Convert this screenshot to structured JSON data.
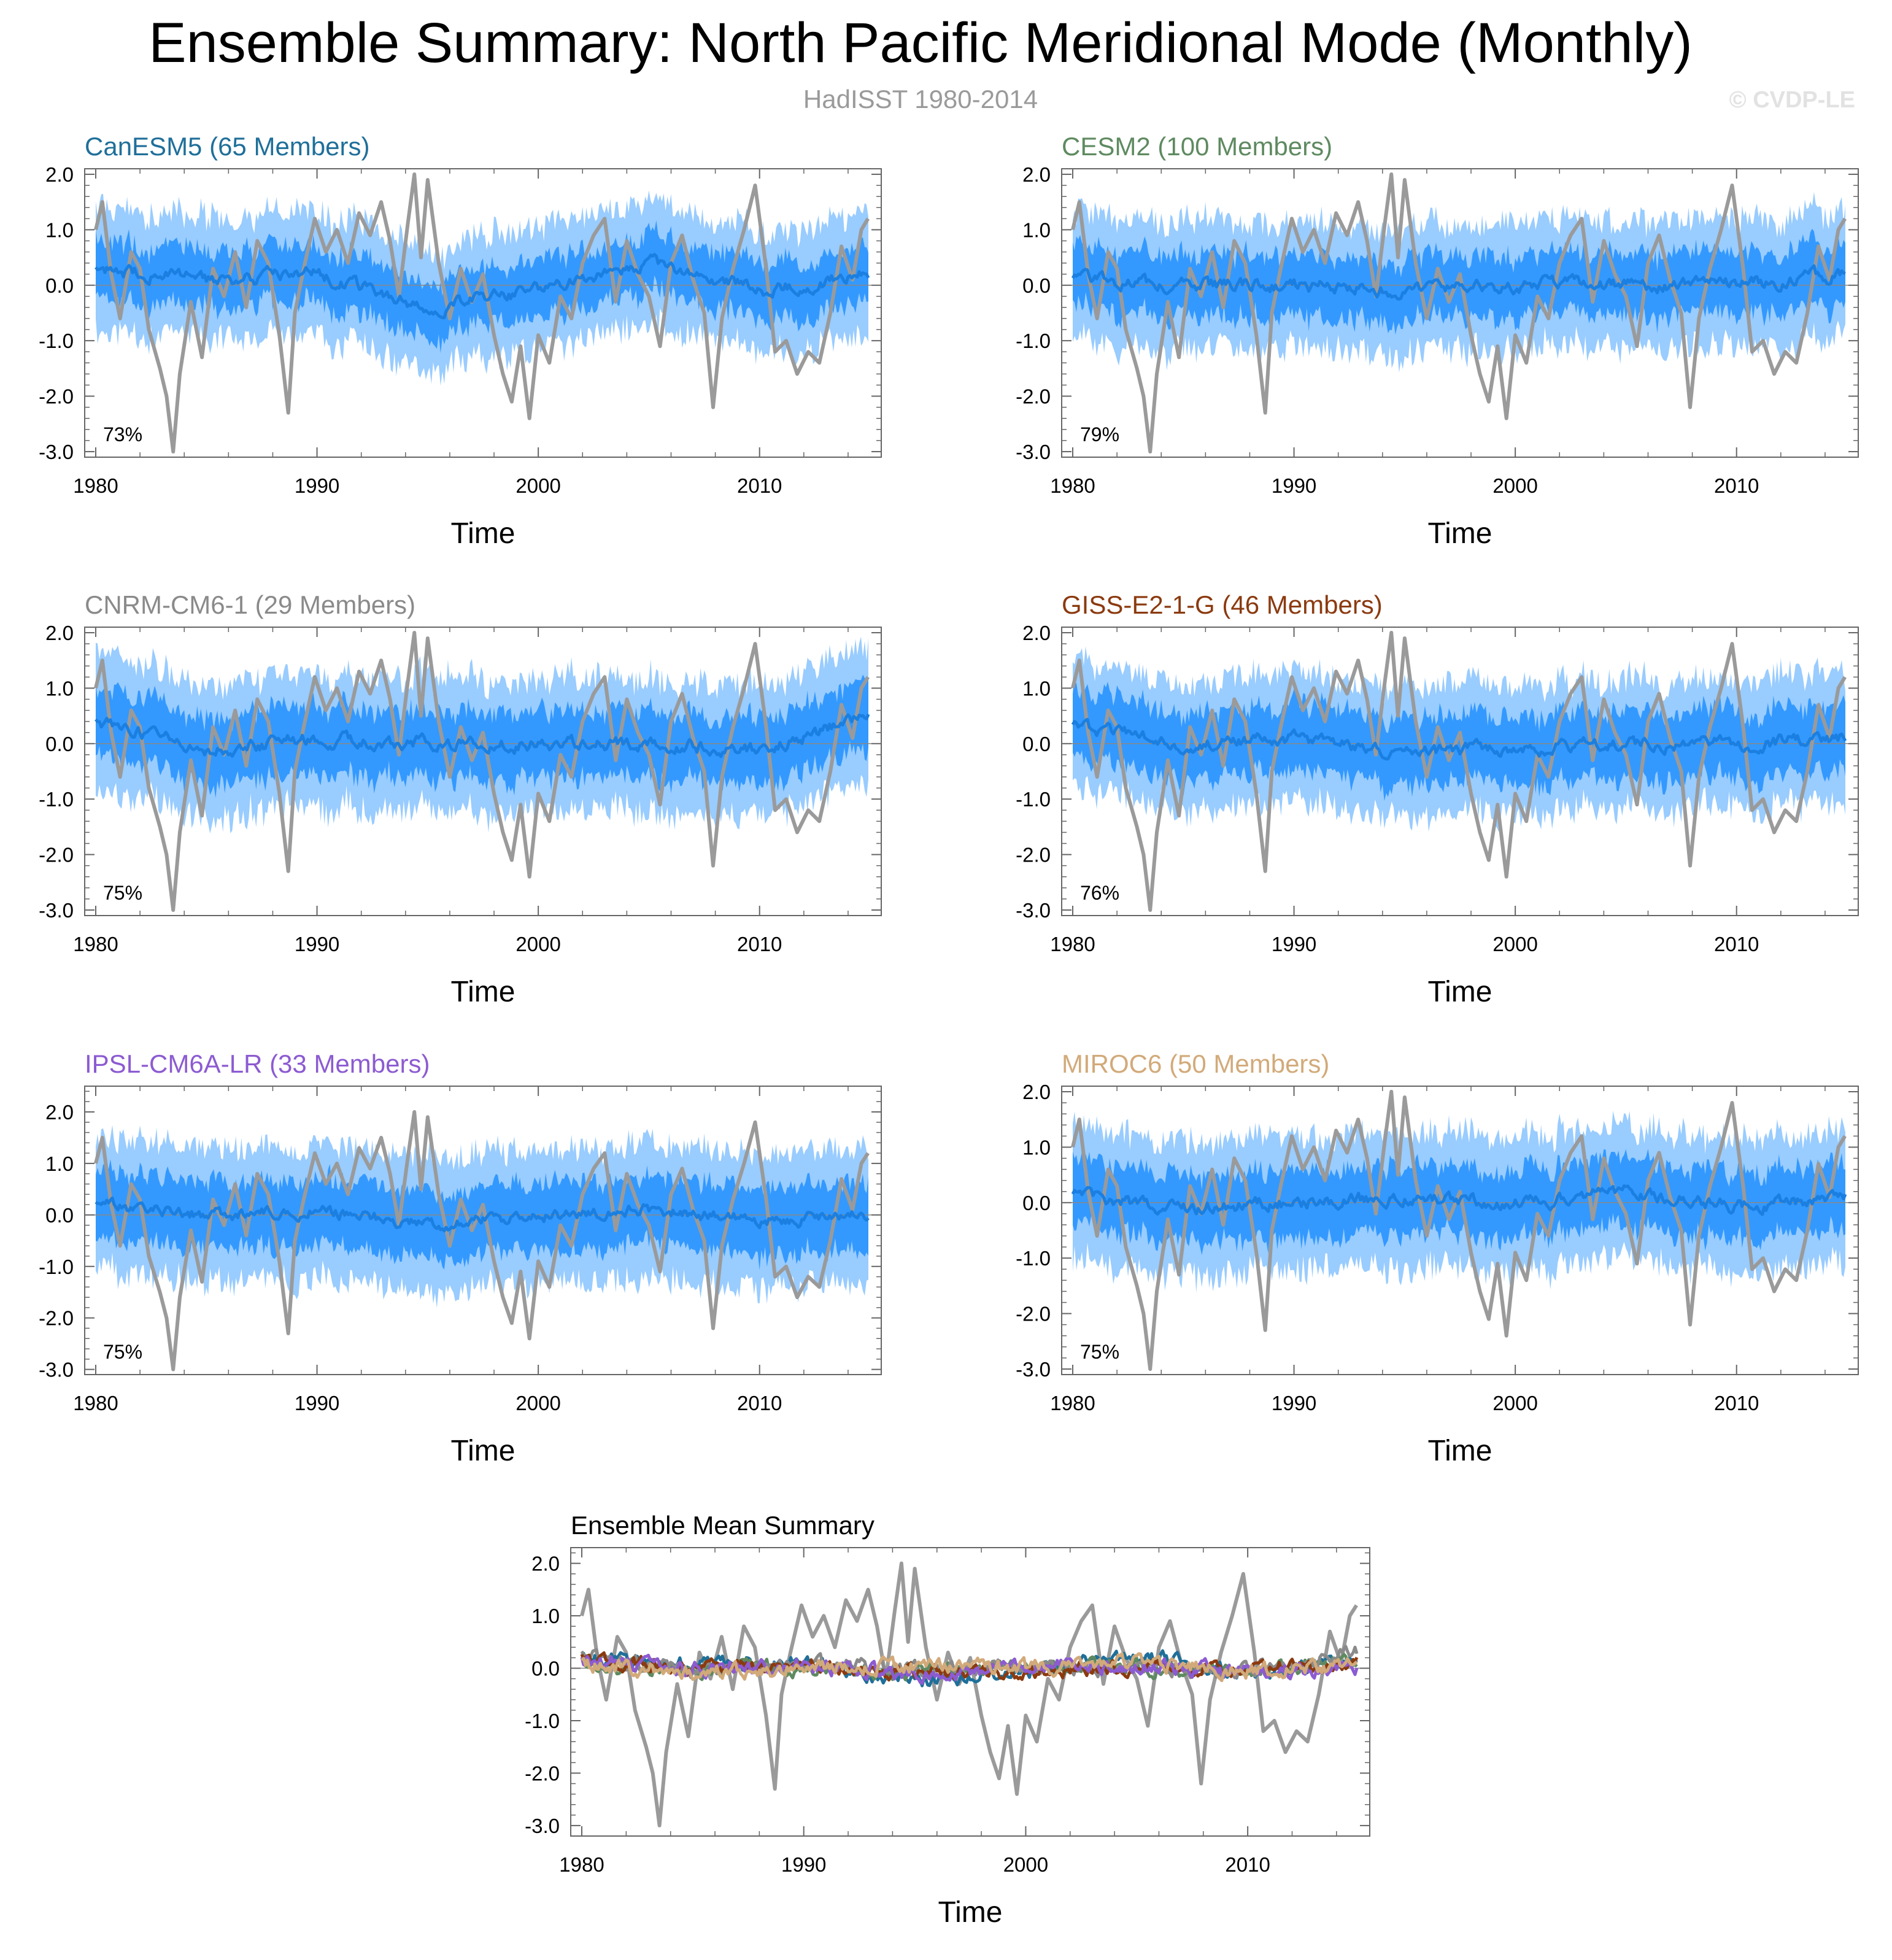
{
  "title": "Ensemble Summary: North Pacific Meridional Mode (Monthly)",
  "subtitle": "HadISST 1980-2014",
  "watermark": "© CVDP-LE",
  "colors": {
    "observed": "#9a9a9a",
    "outer_band": "#99ccff",
    "inner_band": "#3399ff",
    "ensemble_mean": "#1a7fe0",
    "axis": "#666666"
  },
  "chart_data": [
    {
      "type": "line",
      "id": "canesm5",
      "title": "CanESM5 (65 Members)",
      "title_color": "#1f6f99",
      "pct_label": "73%",
      "xlabel": "Time",
      "x_ticks": [
        "1980",
        "1990",
        "2000",
        "2010"
      ],
      "y_ticks": [
        "2.0",
        "1.0",
        "0.0",
        "-1.0",
        "-2.0",
        "-3.0"
      ],
      "xlim": [
        1980,
        2015
      ],
      "ylim": [
        -3.1,
        2.1
      ],
      "series": [
        {
          "name": "ensemble mean",
          "x": [
            1980,
            1985,
            1990,
            1995,
            2000,
            2005,
            2010,
            2014.9
          ],
          "values": [
            0.3,
            0.1,
            0.2,
            -0.4,
            -0.1,
            0.4,
            -0.1,
            0.2
          ]
        },
        {
          "name": "inner band (25-75%)",
          "half_width": 0.5
        },
        {
          "name": "outer band (2.5-97.5%)",
          "half_width": 1.1
        }
      ]
    },
    {
      "type": "line",
      "id": "cesm2",
      "title": "CESM2 (100 Members)",
      "title_color": "#5e8a60",
      "pct_label": "79%",
      "xlabel": "Time",
      "x_ticks": [
        "1980",
        "1990",
        "2000",
        "2010"
      ],
      "y_ticks": [
        "2.0",
        "1.0",
        "0.0",
        "-1.0",
        "-2.0",
        "-3.0"
      ],
      "xlim": [
        1980,
        2015
      ],
      "ylim": [
        -3.1,
        2.1
      ],
      "series": [
        {
          "name": "ensemble mean",
          "x": [
            1980,
            1985,
            1990,
            1995,
            2000,
            2005,
            2010,
            2014.9
          ],
          "values": [
            0.1,
            0.0,
            0.0,
            -0.1,
            0.0,
            0.0,
            0.0,
            0.2
          ]
        },
        {
          "name": "inner band (25-75%)",
          "half_width": 0.55
        },
        {
          "name": "outer band (2.5-97.5%)",
          "half_width": 1.15
        }
      ]
    },
    {
      "type": "line",
      "id": "cnrm",
      "title": "CNRM-CM6-1 (29 Members)",
      "title_color": "#8a8a8a",
      "pct_label": "75%",
      "xlabel": "Time",
      "x_ticks": [
        "1980",
        "1990",
        "2000",
        "2010"
      ],
      "y_ticks": [
        "2.0",
        "1.0",
        "0.0",
        "-1.0",
        "-2.0",
        "-3.0"
      ],
      "xlim": [
        1980,
        2015
      ],
      "ylim": [
        -3.1,
        2.1
      ],
      "series": [
        {
          "name": "ensemble mean",
          "x": [
            1980,
            1985,
            1990,
            1995,
            2000,
            2005,
            2010,
            2014.9
          ],
          "values": [
            0.4,
            -0.1,
            0.1,
            0.0,
            0.0,
            0.0,
            -0.1,
            0.5
          ]
        },
        {
          "name": "inner band (25-75%)",
          "half_width": 0.6
        },
        {
          "name": "outer band (2.5-97.5%)",
          "half_width": 1.2
        }
      ]
    },
    {
      "type": "line",
      "id": "giss",
      "title": "GISS-E2-1-G (46 Members)",
      "title_color": "#8b3a0f",
      "pct_label": "76%",
      "xlabel": "Time",
      "x_ticks": [
        "1980",
        "1990",
        "2000",
        "2010"
      ],
      "y_ticks": [
        "2.0",
        "1.0",
        "0.0",
        "-1.0",
        "-2.0",
        "-3.0"
      ],
      "xlim": [
        1980,
        2015
      ],
      "ylim": [
        -3.1,
        2.1
      ],
      "series": [
        {
          "name": "ensemble mean",
          "x": [
            1980,
            1985,
            1990,
            1995,
            2000,
            2005,
            2010,
            2014.9
          ],
          "values": [
            0.3,
            0.0,
            0.1,
            -0.2,
            -0.1,
            0.0,
            0.0,
            0.1
          ]
        },
        {
          "name": "inner band (25-75%)",
          "half_width": 0.6
        },
        {
          "name": "outer band (2.5-97.5%)",
          "half_width": 1.15
        }
      ]
    },
    {
      "type": "line",
      "id": "ipsl",
      "title": "IPSL-CM6A-LR (33 Members)",
      "title_color": "#8c5bd1",
      "pct_label": "75%",
      "xlabel": "Time",
      "x_ticks": [
        "1980",
        "1990",
        "2000",
        "2010"
      ],
      "y_ticks": [
        "2.0",
        "1.0",
        "0.0",
        "-1.0",
        "-2.0",
        "-3.0"
      ],
      "xlim": [
        1980,
        2015
      ],
      "ylim": [
        -3.1,
        2.5
      ],
      "series": [
        {
          "name": "ensemble mean",
          "x": [
            1980,
            1985,
            1990,
            1995,
            2000,
            2005,
            2010,
            2014.9
          ],
          "values": [
            0.2,
            0.0,
            0.1,
            -0.2,
            0.0,
            0.1,
            -0.1,
            0.0
          ]
        },
        {
          "name": "inner band (25-75%)",
          "half_width": 0.65
        },
        {
          "name": "outer band (2.5-97.5%)",
          "half_width": 1.3
        }
      ]
    },
    {
      "type": "line",
      "id": "miroc6",
      "title": "MIROC6 (50 Members)",
      "title_color": "#d2aa7a",
      "pct_label": "75%",
      "xlabel": "Time",
      "x_ticks": [
        "1980",
        "1990",
        "2000",
        "2010"
      ],
      "y_ticks": [
        "2.0",
        "1.0",
        "0.0",
        "-1.0",
        "-2.0",
        "-3.0"
      ],
      "xlim": [
        1980,
        2015
      ],
      "ylim": [
        -3.1,
        2.1
      ],
      "series": [
        {
          "name": "ensemble mean",
          "x": [
            1980,
            1985,
            1990,
            1995,
            2000,
            2005,
            2010,
            2014.9
          ],
          "values": [
            0.1,
            -0.1,
            0.0,
            0.1,
            0.0,
            0.2,
            -0.1,
            0.1
          ]
        },
        {
          "name": "inner band (25-75%)",
          "half_width": 0.6
        },
        {
          "name": "outer band (2.5-97.5%)",
          "half_width": 1.2
        }
      ]
    },
    {
      "type": "line",
      "id": "mean-summary",
      "title": "Ensemble Mean Summary",
      "title_color": "#000000",
      "xlabel": "Time",
      "x_ticks": [
        "1980",
        "1990",
        "2000",
        "2010"
      ],
      "y_ticks": [
        "2.0",
        "1.0",
        "0.0",
        "-1.0",
        "-2.0",
        "-3.0"
      ],
      "xlim": [
        1980,
        2015
      ],
      "ylim": [
        -3.2,
        2.3
      ],
      "series": [
        {
          "name": "CanESM5",
          "color": "#1f6f99"
        },
        {
          "name": "CESM2",
          "color": "#5e8a60"
        },
        {
          "name": "CNRM-CM6-1",
          "color": "#8a8a8a"
        },
        {
          "name": "GISS-E2-1-G",
          "color": "#8b3a0f"
        },
        {
          "name": "IPSL-CM6A-LR",
          "color": "#8c5bd1"
        },
        {
          "name": "MIROC6",
          "color": "#d2aa7a"
        }
      ]
    }
  ],
  "observed": {
    "name": "HadISST",
    "x": [
      1980,
      1980.3,
      1980.7,
      1981.1,
      1981.6,
      1982.0,
      1982.4,
      1982.9,
      1983.2,
      1983.5,
      1983.8,
      1984.3,
      1984.8,
      1985.3,
      1985.8,
      1986.3,
      1986.8,
      1987.3,
      1987.8,
      1988.3,
      1988.7,
      1989.0,
      1989.4,
      1989.9,
      1990.4,
      1990.9,
      1991.4,
      1991.9,
      1992.4,
      1992.9,
      1993.3,
      1993.7,
      1994.1,
      1994.4,
      1994.7,
      1995.0,
      1995.5,
      1996.0,
      1996.5,
      1997.0,
      1997.5,
      1998.0,
      1998.4,
      1998.8,
      1999.2,
      1999.6,
      2000.0,
      2000.5,
      2001.0,
      2001.5,
      2002.0,
      2002.5,
      2003.0,
      2003.5,
      2004.0,
      2004.5,
      2005.0,
      2005.5,
      2006.0,
      2006.5,
      2007.0,
      2007.5,
      2007.9,
      2008.3,
      2008.8,
      2009.3,
      2009.8,
      2010.3,
      2010.7,
      2011.2,
      2011.7,
      2012.2,
      2012.7,
      2013.2,
      2013.7,
      2014.2,
      2014.6,
      2014.9
    ],
    "values": [
      1.0,
      1.5,
      0.2,
      -0.6,
      0.6,
      0.3,
      -0.8,
      -1.5,
      -2.0,
      -3.0,
      -1.6,
      -0.3,
      -1.3,
      0.3,
      -0.2,
      0.6,
      -0.4,
      0.8,
      0.4,
      -0.9,
      -2.3,
      -0.5,
      0.3,
      1.2,
      0.6,
      1.0,
      0.4,
      1.3,
      0.9,
      1.5,
      0.8,
      -0.2,
      1.1,
      2.0,
      0.5,
      1.9,
      0.4,
      -0.6,
      0.3,
      -0.3,
      0.2,
      -0.9,
      -1.6,
      -2.1,
      -1.1,
      -2.4,
      -0.9,
      -1.4,
      -0.2,
      -0.6,
      0.4,
      0.9,
      1.2,
      -0.3,
      0.8,
      0.2,
      -0.2,
      -1.1,
      0.4,
      0.9,
      0.1,
      -0.5,
      -2.2,
      -0.6,
      0.3,
      1.0,
      1.8,
      0.3,
      -1.2,
      -1.0,
      -1.6,
      -1.2,
      -1.4,
      -0.5,
      0.7,
      0.1,
      1.0,
      1.2
    ]
  }
}
